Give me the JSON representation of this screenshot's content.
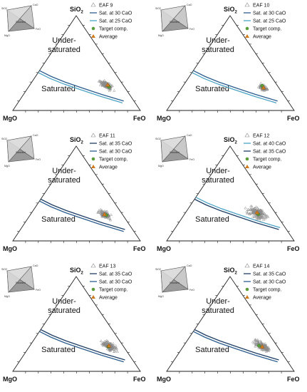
{
  "chart_data": [
    {
      "type": "scatter",
      "vertices": {
        "top": "SiO",
        "top_sub": "2",
        "left": "MgO",
        "right": "FeO"
      },
      "regions": {
        "upper": [
          "Under-",
          "saturated"
        ],
        "lower": "Saturated"
      },
      "legend": [
        {
          "label": "EAF 9",
          "marker": "open-triangle"
        },
        {
          "label": "Sat. at 30 CaO",
          "marker": "line",
          "color": "#2b5d8f"
        },
        {
          "label": "Sat. at 25 CaO",
          "marker": "line",
          "color": "#4aa3c4"
        },
        {
          "label": "Target comp.",
          "marker": "dot",
          "color": "#5a9e3a"
        },
        {
          "label": "Average",
          "marker": "triangle",
          "color": "#d07a1e"
        }
      ],
      "sat_lines": [
        {
          "name": "Sat. at 30 CaO",
          "points": [
            [
              0.42,
              0.58,
              0.0
            ],
            [
              0.36,
              0.52,
              0.12
            ],
            [
              0.3,
              0.44,
              0.26
            ],
            [
              0.24,
              0.34,
              0.42
            ],
            [
              0.17,
              0.22,
              0.61
            ],
            [
              0.1,
              0.08,
              0.82
            ]
          ]
        },
        {
          "name": "Sat. at 25 CaO",
          "points": [
            [
              0.4,
              0.6,
              0.0
            ],
            [
              0.34,
              0.54,
              0.12
            ],
            [
              0.28,
              0.46,
              0.26
            ],
            [
              0.22,
              0.36,
              0.42
            ],
            [
              0.15,
              0.24,
              0.61
            ],
            [
              0.08,
              0.1,
              0.82
            ]
          ]
        }
      ],
      "cluster": {
        "center": [
          0.27,
          0.13,
          0.6
        ],
        "spread": [
          0.13,
          0.05
        ],
        "n": 120,
        "seed": 9
      },
      "target": [
        0.25,
        0.12,
        0.63
      ],
      "average": [
        0.27,
        0.12,
        0.61
      ],
      "inset": {
        "vertices": [
          "SiO2",
          "CaO",
          "MgO",
          "FeO"
        ],
        "label": "Saturated"
      }
    },
    {
      "type": "scatter",
      "vertices": {
        "top": "SiO",
        "top_sub": "2",
        "left": "MgO",
        "right": "FeO"
      },
      "regions": {
        "upper": [
          "Under-",
          "saturated"
        ],
        "lower": "Saturated"
      },
      "legend": [
        {
          "label": "EAF 10",
          "marker": "open-triangle"
        },
        {
          "label": "Sat. at 30 CaO",
          "marker": "line",
          "color": "#2b5d8f"
        },
        {
          "label": "Sat. at 25 CaO",
          "marker": "line",
          "color": "#4aa3c4"
        },
        {
          "label": "Target comp.",
          "marker": "dot",
          "color": "#5a9e3a"
        },
        {
          "label": "Average",
          "marker": "triangle",
          "color": "#d07a1e"
        }
      ],
      "sat_lines": [
        {
          "name": "Sat. at 30 CaO",
          "points": [
            [
              0.42,
              0.58,
              0.0
            ],
            [
              0.36,
              0.52,
              0.12
            ],
            [
              0.3,
              0.44,
              0.26
            ],
            [
              0.24,
              0.34,
              0.42
            ],
            [
              0.17,
              0.22,
              0.61
            ],
            [
              0.1,
              0.08,
              0.82
            ]
          ]
        },
        {
          "name": "Sat. at 25 CaO",
          "points": [
            [
              0.4,
              0.6,
              0.0
            ],
            [
              0.34,
              0.54,
              0.12
            ],
            [
              0.28,
              0.46,
              0.26
            ],
            [
              0.22,
              0.36,
              0.42
            ],
            [
              0.15,
              0.24,
              0.61
            ],
            [
              0.08,
              0.1,
              0.82
            ]
          ]
        }
      ],
      "cluster": {
        "center": [
          0.24,
          0.12,
          0.64
        ],
        "spread": [
          0.08,
          0.04
        ],
        "n": 60,
        "seed": 10
      },
      "target": [
        0.26,
        0.12,
        0.62
      ],
      "average": [
        0.24,
        0.12,
        0.64
      ],
      "inset": {
        "vertices": [
          "SiO2",
          "CaO",
          "MgO",
          "FeO"
        ],
        "label": "Saturated"
      }
    },
    {
      "type": "scatter",
      "vertices": {
        "top": "SiO",
        "top_sub": "2",
        "left": "MgO",
        "right": "FeO"
      },
      "regions": {
        "upper": [
          "Under-",
          "saturated"
        ],
        "lower": "Saturated"
      },
      "legend": [
        {
          "label": "EAF 11",
          "marker": "open-triangle"
        },
        {
          "label": "Sat. at 35 CaO",
          "marker": "line",
          "color": "#1f3f66"
        },
        {
          "label": "Sat. at 30 CaO",
          "marker": "line",
          "color": "#2b5d8f"
        },
        {
          "label": "Target comp.",
          "marker": "dot",
          "color": "#5a9e3a"
        },
        {
          "label": "Average",
          "marker": "triangle",
          "color": "#d07a1e"
        }
      ],
      "sat_lines": [
        {
          "name": "Sat. at 35 CaO",
          "points": [
            [
              0.44,
              0.56,
              0.0
            ],
            [
              0.38,
              0.5,
              0.12
            ],
            [
              0.32,
              0.42,
              0.26
            ],
            [
              0.26,
              0.32,
              0.42
            ],
            [
              0.19,
              0.2,
              0.61
            ],
            [
              0.12,
              0.06,
              0.82
            ]
          ]
        },
        {
          "name": "Sat. at 30 CaO",
          "points": [
            [
              0.42,
              0.58,
              0.0
            ],
            [
              0.36,
              0.52,
              0.12
            ],
            [
              0.3,
              0.44,
              0.26
            ],
            [
              0.24,
              0.34,
              0.42
            ],
            [
              0.17,
              0.22,
              0.61
            ],
            [
              0.1,
              0.08,
              0.82
            ]
          ]
        }
      ],
      "cluster": {
        "center": [
          0.28,
          0.14,
          0.58
        ],
        "spread": [
          0.11,
          0.05
        ],
        "n": 110,
        "seed": 11
      },
      "target": [
        0.27,
        0.13,
        0.6
      ],
      "average": [
        0.28,
        0.14,
        0.58
      ],
      "inset": {
        "vertices": [
          "SiO2",
          "CaO",
          "MgO",
          "FeO"
        ],
        "label": "Saturated"
      }
    },
    {
      "type": "scatter",
      "vertices": {
        "top": "SiO",
        "top_sub": "2",
        "left": "MgO",
        "right": "FeO"
      },
      "regions": {
        "upper": [
          "Under-",
          "saturated"
        ],
        "lower": "Saturated"
      },
      "legend": [
        {
          "label": "EAF 12",
          "marker": "open-triangle"
        },
        {
          "label": "Sat. at 40 CaO",
          "marker": "line",
          "color": "#4aa3c4"
        },
        {
          "label": "Sat. at 35 CaO",
          "marker": "line",
          "color": "#1f3f66"
        },
        {
          "label": "Target comp.",
          "marker": "dot",
          "color": "#5a9e3a"
        },
        {
          "label": "Average",
          "marker": "triangle",
          "color": "#d07a1e"
        }
      ],
      "sat_lines": [
        {
          "name": "Sat. at 40 CaO",
          "points": [
            [
              0.46,
              0.54,
              0.0
            ],
            [
              0.4,
              0.48,
              0.12
            ],
            [
              0.34,
              0.4,
              0.26
            ],
            [
              0.28,
              0.3,
              0.42
            ],
            [
              0.21,
              0.18,
              0.61
            ],
            [
              0.14,
              0.04,
              0.82
            ]
          ]
        },
        {
          "name": "Sat. at 35 CaO",
          "points": [
            [
              0.44,
              0.56,
              0.0
            ],
            [
              0.38,
              0.5,
              0.12
            ],
            [
              0.32,
              0.42,
              0.26
            ],
            [
              0.26,
              0.32,
              0.42
            ],
            [
              0.19,
              0.2,
              0.61
            ],
            [
              0.12,
              0.06,
              0.82
            ]
          ]
        }
      ],
      "cluster": {
        "center": [
          0.3,
          0.14,
          0.56
        ],
        "spread": [
          0.16,
          0.09
        ],
        "n": 150,
        "seed": 12
      },
      "target": [
        0.28,
        0.14,
        0.58
      ],
      "average": [
        0.3,
        0.14,
        0.56
      ],
      "inset": {
        "vertices": [
          "SiO2",
          "CaO",
          "MgO",
          "FeO"
        ],
        "label": "Saturated"
      }
    },
    {
      "type": "scatter",
      "vertices": {
        "top": "SiO",
        "top_sub": "2",
        "left": "MgO",
        "right": "FeO"
      },
      "regions": {
        "upper": [
          "Under-",
          "saturated"
        ],
        "lower": "Saturated"
      },
      "legend": [
        {
          "label": "EAF 13",
          "marker": "open-triangle"
        },
        {
          "label": "Sat. at 35 CaO",
          "marker": "line",
          "color": "#1f3f66"
        },
        {
          "label": "Sat. at 30 CaO",
          "marker": "line",
          "color": "#2b5d8f"
        },
        {
          "label": "Target comp.",
          "marker": "dot",
          "color": "#5a9e3a"
        },
        {
          "label": "Average",
          "marker": "triangle",
          "color": "#d07a1e"
        }
      ],
      "sat_lines": [
        {
          "name": "Sat. at 35 CaO",
          "points": [
            [
              0.44,
              0.56,
              0.0
            ],
            [
              0.38,
              0.5,
              0.12
            ],
            [
              0.32,
              0.42,
              0.26
            ],
            [
              0.26,
              0.32,
              0.42
            ],
            [
              0.19,
              0.2,
              0.61
            ],
            [
              0.12,
              0.06,
              0.82
            ]
          ]
        },
        {
          "name": "Sat. at 30 CaO",
          "points": [
            [
              0.42,
              0.58,
              0.0
            ],
            [
              0.36,
              0.52,
              0.12
            ],
            [
              0.3,
              0.44,
              0.26
            ],
            [
              0.24,
              0.34,
              0.42
            ],
            [
              0.17,
              0.22,
              0.61
            ],
            [
              0.1,
              0.08,
              0.82
            ]
          ]
        }
      ],
      "cluster": {
        "center": [
          0.27,
          0.11,
          0.62
        ],
        "spread": [
          0.14,
          0.06
        ],
        "n": 140,
        "seed": 13
      },
      "target": [
        0.26,
        0.12,
        0.62
      ],
      "average": [
        0.27,
        0.11,
        0.62
      ],
      "inset": {
        "vertices": [
          "SiO2",
          "CaO",
          "MgO",
          "FeO"
        ],
        "label": "Saturated"
      }
    },
    {
      "type": "scatter",
      "vertices": {
        "top": "SiO",
        "top_sub": "2",
        "left": "MgO",
        "right": "FeO"
      },
      "regions": {
        "upper": [
          "Under-",
          "saturated"
        ],
        "lower": "Saturated"
      },
      "legend": [
        {
          "label": "EAF 14",
          "marker": "open-triangle"
        },
        {
          "label": "Sat. at 35 CaO",
          "marker": "line",
          "color": "#1f3f66"
        },
        {
          "label": "Sat. at 30 CaO",
          "marker": "line",
          "color": "#2b5d8f"
        },
        {
          "label": "Target comp.",
          "marker": "dot",
          "color": "#5a9e3a"
        },
        {
          "label": "Average",
          "marker": "triangle",
          "color": "#d07a1e"
        }
      ],
      "sat_lines": [
        {
          "name": "Sat. at 35 CaO",
          "points": [
            [
              0.44,
              0.56,
              0.0
            ],
            [
              0.38,
              0.5,
              0.12
            ],
            [
              0.32,
              0.42,
              0.26
            ],
            [
              0.26,
              0.32,
              0.42
            ],
            [
              0.19,
              0.2,
              0.61
            ],
            [
              0.12,
              0.06,
              0.82
            ]
          ]
        },
        {
          "name": "Sat. at 30 CaO",
          "points": [
            [
              0.42,
              0.58,
              0.0
            ],
            [
              0.36,
              0.52,
              0.12
            ],
            [
              0.3,
              0.44,
              0.26
            ],
            [
              0.24,
              0.34,
              0.42
            ],
            [
              0.17,
              0.22,
              0.61
            ],
            [
              0.1,
              0.08,
              0.82
            ]
          ]
        }
      ],
      "cluster": {
        "center": [
          0.27,
          0.12,
          0.61
        ],
        "spread": [
          0.15,
          0.05
        ],
        "n": 130,
        "seed": 14
      },
      "target": [
        0.27,
        0.14,
        0.59
      ],
      "average": [
        0.26,
        0.12,
        0.62
      ],
      "inset": {
        "vertices": [
          "SiO2",
          "CaO",
          "MgO",
          "FeO"
        ],
        "label": "Saturated"
      }
    }
  ]
}
